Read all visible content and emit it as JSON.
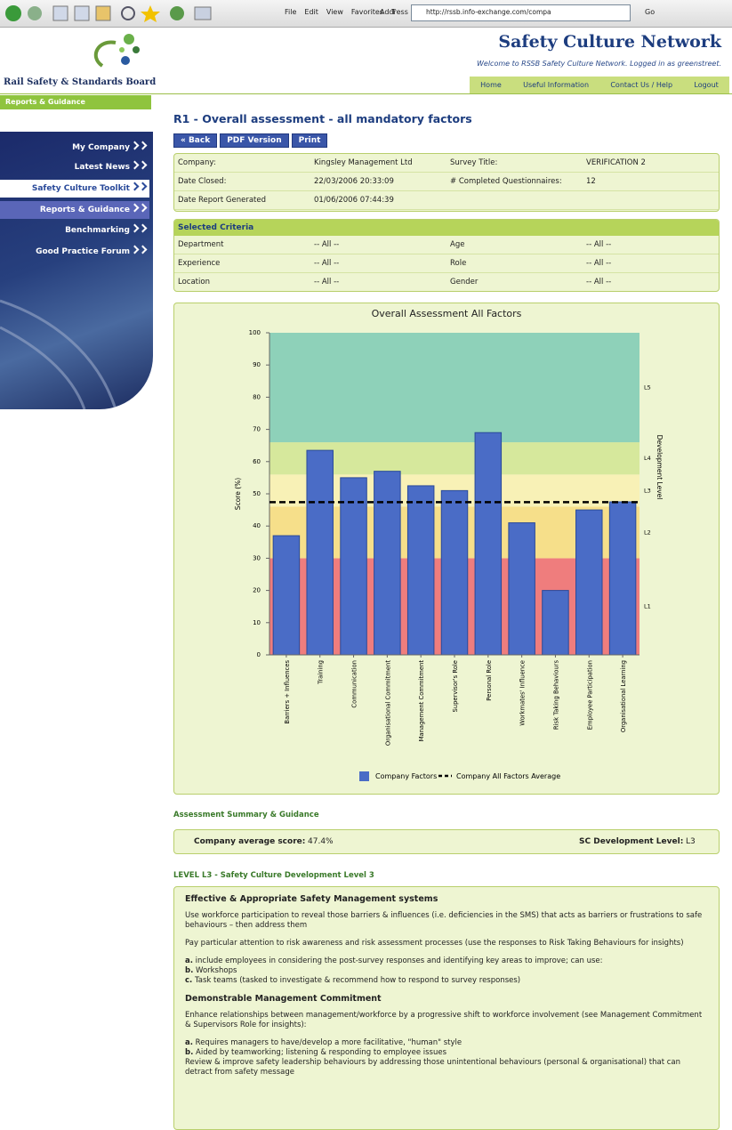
{
  "toolbar": {
    "menu": [
      "File",
      "Edit",
      "View",
      "Favorites",
      "T"
    ],
    "address_label": "Address",
    "url": "http://rssb.info-exchange.com/compa",
    "go": "Go"
  },
  "header": {
    "org": "Rail Safety & Standards Board",
    "site_title": "Safety Culture Network",
    "welcome": "Welcome to RSSB Safety Culture Network. Logged in as greenstreet.",
    "top_nav": [
      "Home",
      "Useful Information",
      "Contact Us / Help",
      "Logout"
    ],
    "section": "Reports & Guidance"
  },
  "side_nav": {
    "items": [
      "My Company",
      "Latest News",
      "Safety Culture Toolkit",
      "Reports & Guidance",
      "Benchmarking",
      "Good Practice Forum"
    ]
  },
  "page_title": "R1 - Overall assessment - all mandatory factors",
  "buttons": [
    "« Back",
    "PDF Version",
    "Print"
  ],
  "info": {
    "rows": [
      [
        "Company:",
        "Kingsley Management Ltd",
        "Survey Title:",
        "VERIFICATION 2"
      ],
      [
        "Date Closed:",
        "22/03/2006 20:33:09",
        "# Completed Questionnaires:",
        "12"
      ],
      [
        "Date Report Generated",
        "01/06/2006 07:44:39"
      ]
    ]
  },
  "criteria": {
    "title": "Selected Criteria",
    "rows": [
      [
        "Department",
        "-- All --",
        "Age",
        "-- All --"
      ],
      [
        "Experience",
        "-- All --",
        "Role",
        "-- All --"
      ],
      [
        "Location",
        "-- All --",
        "Gender",
        "-- All --"
      ]
    ]
  },
  "chart_data": {
    "type": "bar",
    "title": "Overall Assessment All Factors",
    "y_label": "Score (%)",
    "y2_label": "Development Level",
    "categories": [
      "Barriers + Influences",
      "Training",
      "Communication",
      "Organisational Commitment",
      "Management Commitment",
      "Supervisor's Role",
      "Personal Role",
      "Workmates' Influence",
      "Risk Taking Behaviours",
      "Employee Participation",
      "Organisational Learning"
    ],
    "series": [
      {
        "name": "Company Factors",
        "color": "#4a6cc6",
        "values": [
          37,
          63.5,
          55,
          57,
          52.5,
          51,
          69,
          41,
          20,
          45,
          47.5
        ]
      }
    ],
    "average": {
      "name": "Company All Factors Average",
      "value": 47.4,
      "color": "#000000"
    },
    "levels": [
      {
        "name": "L1",
        "from": 0,
        "to": 30,
        "color": "#ef7d7d"
      },
      {
        "name": "L2",
        "from": 30,
        "to": 46,
        "color": "#f6df8a"
      },
      {
        "name": "L3",
        "from": 46,
        "to": 56,
        "color": "#f8f1b6"
      },
      {
        "name": "L4",
        "from": 56,
        "to": 66,
        "color": "#d6e89c"
      },
      {
        "name": "L5",
        "from": 66,
        "to": 100,
        "color": "#8ed1b9"
      }
    ],
    "ylim": [
      0,
      100
    ],
    "yticks": [
      0,
      10,
      20,
      30,
      40,
      50,
      60,
      70,
      80,
      90,
      100
    ]
  },
  "summary": {
    "heading": "Assessment Summary & Guidance",
    "score_label": "Company average score:",
    "score": "47.4%",
    "level_label": "SC Development Level:",
    "level": "L3"
  },
  "guidance": {
    "heading": "LEVEL L3 - Safety Culture Development Level 3",
    "sections": [
      {
        "title": "Effective & Appropriate Safety Management systems",
        "paragraphs": [
          [
            {
              "text": "Use workforce participation to reveal those barriers & influences (i.e. deficiencies in the SMS) that acts as barriers or frustrations to safe behaviours – then address them"
            }
          ],
          [
            {
              "text": "Pay particular attention to risk awareness and risk assessment processes (use the responses to Risk Taking Behaviours for insights)"
            }
          ],
          [
            {
              "marker": "a.",
              "text": "include employees in considering the post-survey responses and identifying key areas to improve; can use:"
            },
            {
              "marker": "b.",
              "text": "Workshops"
            },
            {
              "marker": "c.",
              "text": "Task teams (tasked to investigate & recommend how to respond to survey responses)"
            }
          ]
        ]
      },
      {
        "title": "Demonstrable Management Commitment",
        "paragraphs": [
          [
            {
              "text": "Enhance relationships between management/workforce by a progressive shift to workforce involvement (see Management Commitment & Supervisors Role for insights):"
            }
          ],
          [
            {
              "marker": "a.",
              "text": "Requires managers to have/develop a more facilitative, \"human\" style"
            },
            {
              "marker": "b.",
              "text": "Aided by teamworking; listening & responding to employee issues"
            },
            {
              "text": "Review & improve safety leadership behaviours by addressing those unintentional behaviours (personal & organisational) that can detract from safety message"
            }
          ]
        ]
      }
    ]
  }
}
